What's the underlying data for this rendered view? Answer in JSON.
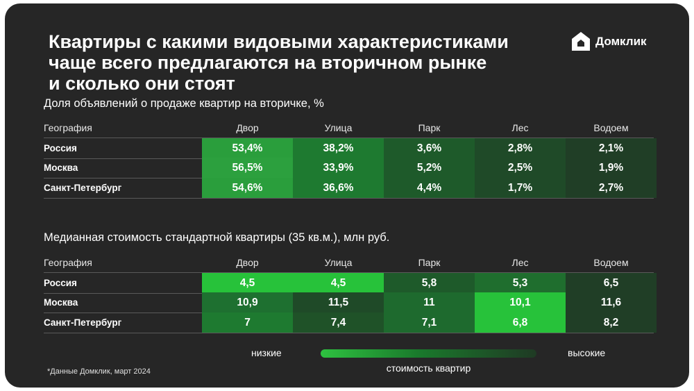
{
  "title_lines": [
    "Квартиры с какими видовыми характеристиками",
    "чаще всего предлагаются на вторичном рынке",
    "и сколько они стоят"
  ],
  "brand": {
    "name": "Домклик",
    "icon": "domclick-house-logo-icon"
  },
  "chart_data": [
    {
      "type": "table",
      "title": "Доля объявлений о продаже квартир на вторичке, %",
      "columns": [
        "География",
        "Двор",
        "Улица",
        "Парк",
        "Лес",
        "Водоем"
      ],
      "rows": [
        {
          "label": "Россия",
          "values": [
            "53,4%",
            "38,2%",
            "3,6%",
            "2,8%",
            "2,1%"
          ]
        },
        {
          "label": "Москва",
          "values": [
            "56,5%",
            "33,9%",
            "5,2%",
            "2,5%",
            "1,9%"
          ]
        },
        {
          "label": "Санкт-Петербург",
          "values": [
            "54,6%",
            "36,6%",
            "4,4%",
            "1,7%",
            "2,7%"
          ]
        }
      ]
    },
    {
      "type": "table",
      "title": "Медианная стоимость стандартной квартиры (35 кв.м.), млн руб.",
      "columns": [
        "География",
        "Двор",
        "Улица",
        "Парк",
        "Лес",
        "Водоем"
      ],
      "rows": [
        {
          "label": "Россия",
          "values": [
            "4,5",
            "4,5",
            "5,8",
            "5,3",
            "6,5"
          ]
        },
        {
          "label": "Москва",
          "values": [
            "10,9",
            "11,5",
            "11",
            "10,1",
            "11,6"
          ]
        },
        {
          "label": "Санкт-Петербург",
          "values": [
            "7",
            "7,4",
            "7,1",
            "6,8",
            "8,2"
          ]
        }
      ]
    }
  ],
  "cell_colors": [
    [
      [
        "#2a9e3c",
        "#1e7a30",
        "#1e5a2a",
        "#1f4a28",
        "#203e26"
      ],
      [
        "#2ca03e",
        "#1e7a30",
        "#1e5a2a",
        "#1f4a28",
        "#203e26"
      ],
      [
        "#2a9e3c",
        "#1e7a30",
        "#1e5a2a",
        "#1f4a28",
        "#203e26"
      ]
    ],
    [
      [
        "#27c23a",
        "#27c23a",
        "#1e5a2a",
        "#1f6e2e",
        "#203e26"
      ],
      [
        "#1e7030",
        "#1f4a28",
        "#1e6a2e",
        "#27c23a",
        "#203e26"
      ],
      [
        "#1e7a30",
        "#1f5228",
        "#1e6a2e",
        "#27c23a",
        "#203e26"
      ]
    ]
  ],
  "legend": {
    "low_label": "низкие",
    "high_label": "высокие",
    "caption": "стоимость квартир",
    "colors": [
      "#2ec240",
      "#1f3a24"
    ]
  },
  "footnote": "*Данные Домклик, март 2024"
}
